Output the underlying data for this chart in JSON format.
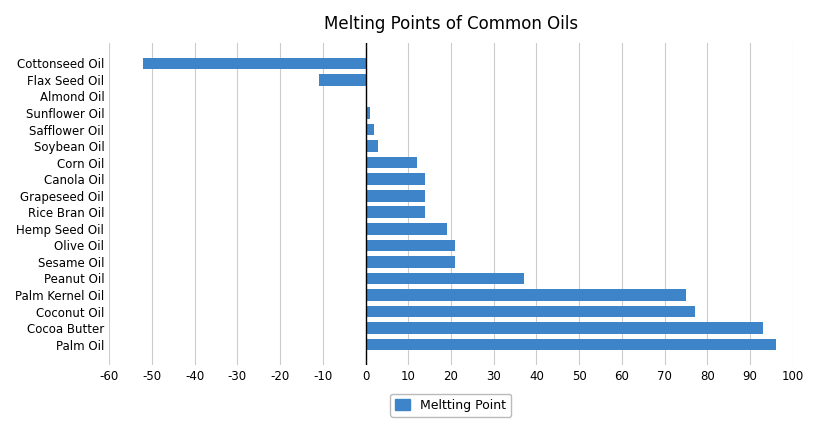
{
  "title": "Melting Points of Common Oils",
  "categories": [
    "Cottonseed Oil",
    "Flax Seed Oil",
    "Almond Oil",
    "Sunflower Oil",
    "Safflower Oil",
    "Soybean Oil",
    "Corn Oil",
    "Canola Oil",
    "Grapeseed Oil",
    "Rice Bran Oil",
    "Hemp Seed Oil",
    "Olive Oil",
    "Sesame Oil",
    "Peanut Oil",
    "Palm Kernel Oil",
    "Coconut Oil",
    "Cocoa Butter",
    "Palm Oil"
  ],
  "values": [
    -52,
    -11,
    0,
    1,
    2,
    3,
    12,
    14,
    14,
    14,
    19,
    21,
    21,
    37,
    75,
    77,
    93,
    96
  ],
  "bar_color": "#3d85c8",
  "xlim": [
    -60,
    100
  ],
  "xticks": [
    -60,
    -50,
    -40,
    -30,
    -20,
    -10,
    0,
    10,
    20,
    30,
    40,
    50,
    60,
    70,
    80,
    90,
    100
  ],
  "legend_label": "Meltting Point",
  "background_color": "#ffffff",
  "grid_color": "#cccccc"
}
